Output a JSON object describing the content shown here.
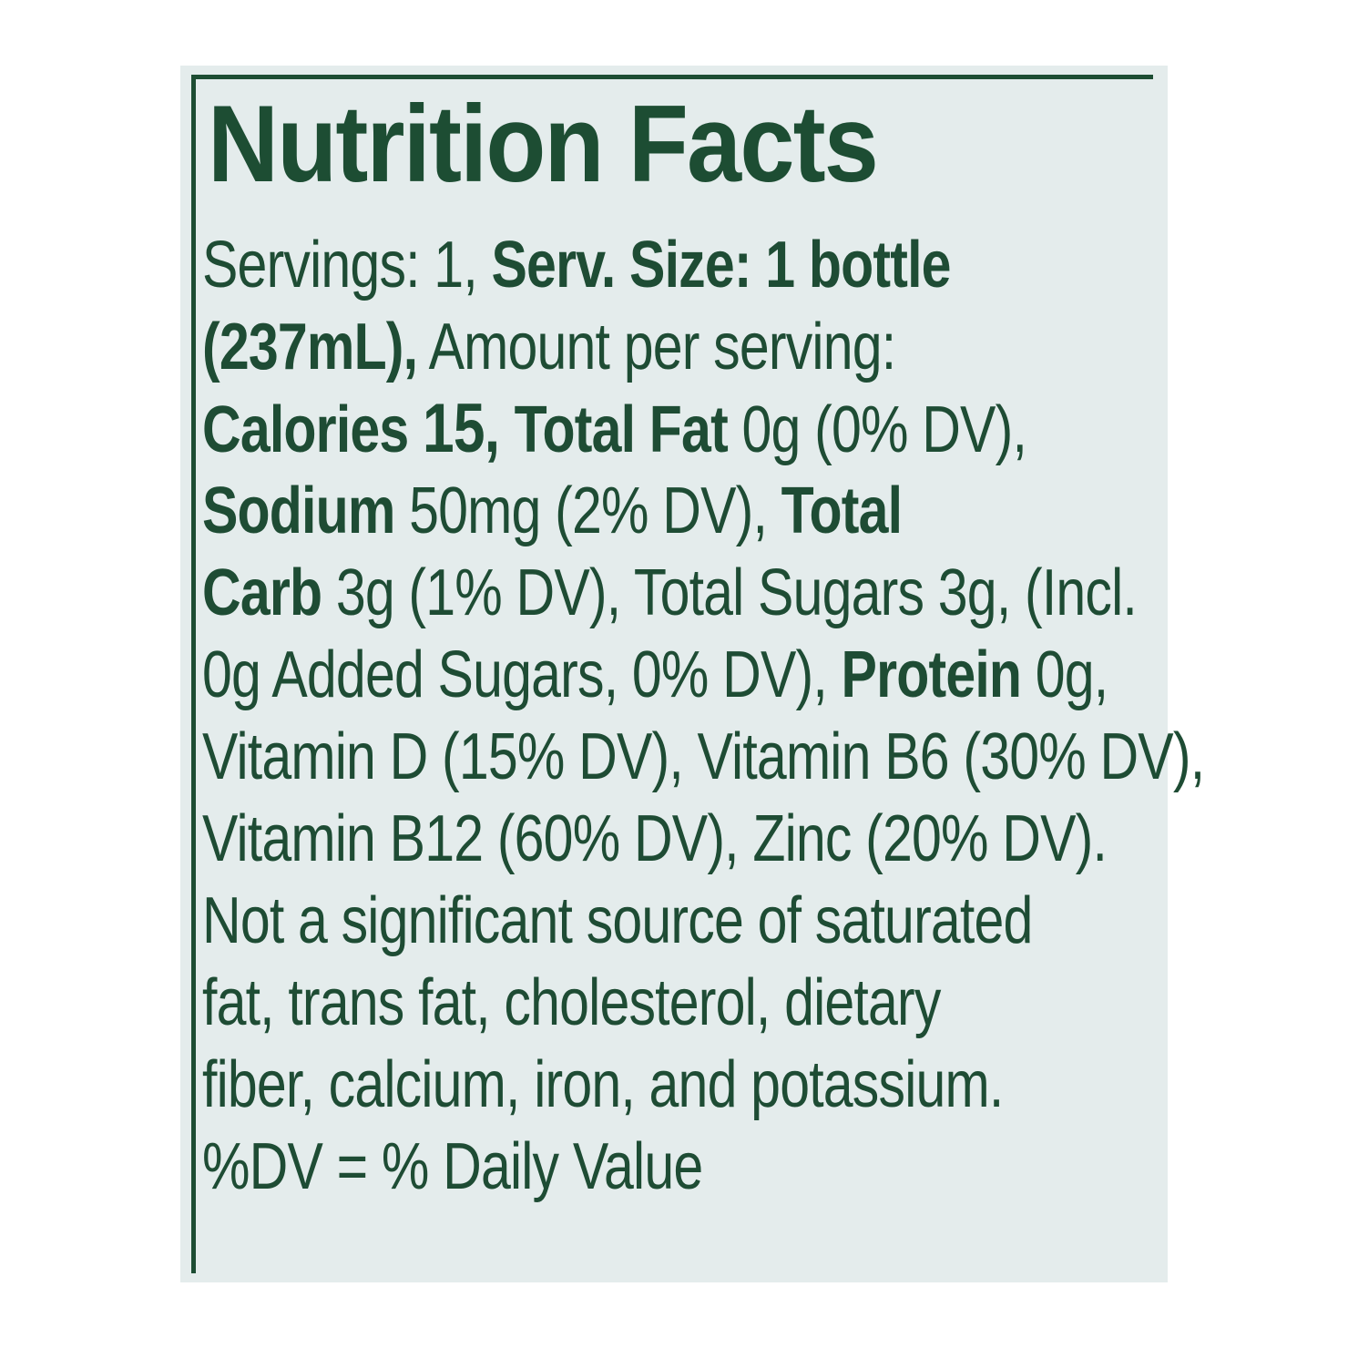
{
  "title": "Nutrition Facts",
  "lines": [
    [
      {
        "t": "Servings: 1, ",
        "b": false
      },
      {
        "t": "Serv. Size: 1 bottle",
        "b": true
      }
    ],
    [
      {
        "t": "(237mL),",
        "b": true
      },
      {
        "t": " Amount per serving:",
        "b": false
      }
    ],
    [
      {
        "t": "Calories ",
        "b": true
      },
      {
        "t": "15, ",
        "b": true,
        "big": true
      },
      {
        "t": "Total Fat",
        "b": true
      },
      {
        "t": " 0g (0% DV),",
        "b": false
      }
    ],
    [
      {
        "t": "Sodium",
        "b": true
      },
      {
        "t": " 50mg (2% DV), ",
        "b": false
      },
      {
        "t": "Total",
        "b": true
      }
    ],
    [
      {
        "t": "Carb",
        "b": true
      },
      {
        "t": " 3g (1% DV), Total Sugars 3g, (Incl.",
        "b": false
      }
    ],
    [
      {
        "t": "0g Added Sugars, 0% DV), ",
        "b": false
      },
      {
        "t": "Protein",
        "b": true
      },
      {
        "t": " 0g,",
        "b": false
      }
    ],
    [
      {
        "t": "Vitamin D (15% DV), Vitamin B6 (30% DV),",
        "b": false
      }
    ],
    [
      {
        "t": "Vitamin B12 (60% DV), Zinc (20% DV).",
        "b": false
      }
    ],
    [
      {
        "t": "Not a significant source of saturated",
        "b": false
      }
    ],
    [
      {
        "t": "fat, trans fat, cholesterol, dietary",
        "b": false
      }
    ],
    [
      {
        "t": "fiber, calcium, iron, and potassium.",
        "b": false
      }
    ],
    [
      {
        "t": "%DV = % Daily Value",
        "b": false
      }
    ]
  ],
  "colors": {
    "text": "#1d4d33",
    "background": "#e4ecec"
  }
}
